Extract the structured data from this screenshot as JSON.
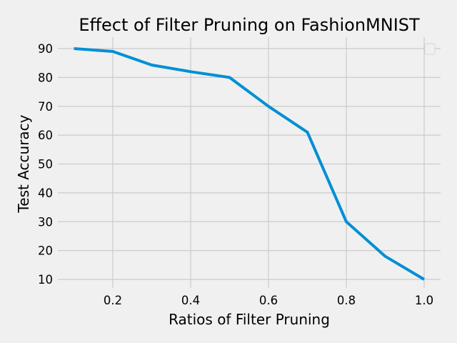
{
  "chart_data": {
    "type": "line",
    "title": "Effect of Filter Pruning on FashionMNIST",
    "xlabel": "Ratios of Filter Pruning",
    "ylabel": "Test Accuracy",
    "xlim": [
      0.1,
      1.0
    ],
    "ylim": [
      10,
      90
    ],
    "xticks": [
      0.2,
      0.4,
      0.6,
      0.8,
      1.0
    ],
    "xtick_labels": [
      "0.2",
      "0.4",
      "0.6",
      "0.8",
      "1.0"
    ],
    "yticks": [
      10,
      20,
      30,
      40,
      50,
      60,
      70,
      80,
      90
    ],
    "ytick_labels": [
      "10",
      "20",
      "30",
      "40",
      "50",
      "60",
      "70",
      "80",
      "90"
    ],
    "grid": true,
    "legend": "top-right",
    "series": [
      {
        "color": "#008fd5",
        "x": [
          0.1,
          0.2,
          0.3,
          0.4,
          0.5,
          0.6,
          0.7,
          0.8,
          0.9,
          1.0
        ],
        "y": [
          90,
          89,
          84.3,
          82,
          80,
          70,
          61,
          30,
          18,
          10
        ]
      }
    ]
  }
}
